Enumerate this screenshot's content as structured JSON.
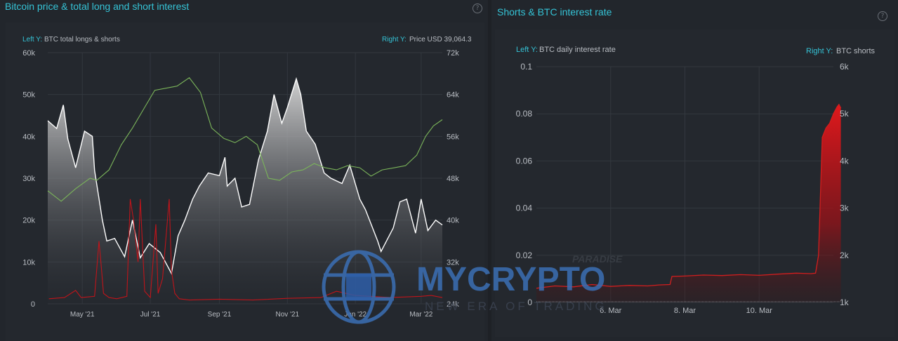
{
  "panels": [
    {
      "title": "Bitcoin price & total long and short interest",
      "help": "?",
      "axis_note_left_prefix": "Left Y:",
      "axis_note_left": "BTC total longs & shorts",
      "axis_note_right_prefix": "Right Y:",
      "axis_note_right": "Price USD 39,064.3"
    },
    {
      "title": "Shorts & BTC interest rate",
      "help": "?",
      "axis_note_left_prefix": "Left Y:",
      "axis_note_left": "BTC daily interest rate",
      "axis_note_right_prefix": "Right Y:",
      "axis_note_right": "BTC shorts"
    }
  ],
  "watermark": {
    "brand": "MYCRYPTO",
    "tag": "PARADISE",
    "slogan": "NEW ERA OF TRADING",
    "color": "#3b6fb5"
  },
  "colors": {
    "accent": "#35c3d6",
    "price": "#ffffff",
    "longs_shorts": "#7bb55a",
    "shorts": "#c0141a",
    "interest": "#d21e1e"
  },
  "chart_data": [
    {
      "type": "line",
      "x_ticks": [
        "May '21",
        "Jul '21",
        "Sep '21",
        "Nov '21",
        "Jan '22",
        "Mar '22"
      ],
      "x_range": [
        "2021-03-31",
        "2022-03-20"
      ],
      "left_axis": {
        "ticks": [
          "0",
          "10k",
          "20k",
          "30k",
          "40k",
          "50k",
          "60k"
        ],
        "ylim": [
          0,
          60000
        ]
      },
      "right_axis": {
        "ticks": [
          "24k",
          "32k",
          "40k",
          "48k",
          "56k",
          "64k",
          "72k"
        ],
        "ylim": [
          24000,
          72000
        ]
      },
      "series": [
        {
          "axis": "right",
          "style": "area",
          "x": [
            "2021-03-31",
            "2021-04-08",
            "2021-04-14",
            "2021-04-18",
            "2021-04-25",
            "2021-05-03",
            "2021-05-10",
            "2021-05-12",
            "2021-05-19",
            "2021-05-23",
            "2021-05-30",
            "2021-06-08",
            "2021-06-15",
            "2021-06-22",
            "2021-06-30",
            "2021-07-10",
            "2021-07-20",
            "2021-07-26",
            "2021-08-01",
            "2021-08-08",
            "2021-08-14",
            "2021-08-22",
            "2021-09-01",
            "2021-09-06",
            "2021-09-08",
            "2021-09-15",
            "2021-09-21",
            "2021-09-28",
            "2021-10-06",
            "2021-10-14",
            "2021-10-20",
            "2021-10-27",
            "2021-11-01",
            "2021-11-09",
            "2021-11-13",
            "2021-11-18",
            "2021-11-26",
            "2021-12-04",
            "2021-12-10",
            "2021-12-20",
            "2021-12-27",
            "2022-01-05",
            "2022-01-10",
            "2022-01-21",
            "2022-01-24",
            "2022-02-04",
            "2022-02-10",
            "2022-02-16",
            "2022-02-24",
            "2022-03-01",
            "2022-03-07",
            "2022-03-14",
            "2022-03-20"
          ],
          "y": [
            59000,
            57500,
            62000,
            55500,
            50000,
            57000,
            56000,
            49500,
            40000,
            36000,
            36500,
            33000,
            40000,
            32800,
            35500,
            33800,
            29800,
            37000,
            40000,
            44000,
            46500,
            49000,
            48500,
            52000,
            46500,
            48000,
            42500,
            43000,
            51500,
            57000,
            64000,
            58500,
            61500,
            67000,
            64000,
            57000,
            54500,
            49000,
            48000,
            47000,
            50500,
            44000,
            42000,
            36000,
            34000,
            38500,
            43500,
            44000,
            37500,
            44000,
            38000,
            40000,
            39064
          ]
        },
        {
          "axis": "left",
          "style": "line",
          "x": [
            "2021-03-31",
            "2021-04-12",
            "2021-04-25",
            "2021-05-08",
            "2021-05-14",
            "2021-05-25",
            "2021-06-05",
            "2021-06-15",
            "2021-06-25",
            "2021-07-05",
            "2021-07-15",
            "2021-07-25",
            "2021-08-05",
            "2021-08-15",
            "2021-08-25",
            "2021-09-05",
            "2021-09-15",
            "2021-09-25",
            "2021-10-05",
            "2021-10-15",
            "2021-10-25",
            "2021-11-05",
            "2021-11-15",
            "2021-11-25",
            "2021-12-05",
            "2021-12-15",
            "2021-12-25",
            "2022-01-05",
            "2022-01-15",
            "2022-01-25",
            "2022-02-05",
            "2022-02-15",
            "2022-02-25",
            "2022-03-05",
            "2022-03-12",
            "2022-03-20"
          ],
          "y": [
            27000,
            24500,
            27500,
            30000,
            29500,
            32000,
            38000,
            42000,
            46500,
            51000,
            51500,
            52000,
            54000,
            50500,
            42000,
            39500,
            38500,
            40000,
            38000,
            30000,
            29500,
            31500,
            32000,
            33500,
            32500,
            32000,
            33000,
            32500,
            30500,
            32000,
            32500,
            33000,
            35500,
            40000,
            42500,
            44000
          ]
        },
        {
          "axis": "left",
          "style": "line",
          "x": [
            "2021-04-01",
            "2021-04-15",
            "2021-04-25",
            "2021-04-30",
            "2021-05-12",
            "2021-05-16",
            "2021-05-18",
            "2021-05-20",
            "2021-05-25",
            "2021-06-01",
            "2021-06-10",
            "2021-06-13",
            "2021-06-16",
            "2021-06-20",
            "2021-06-22",
            "2021-06-26",
            "2021-07-01",
            "2021-07-06",
            "2021-07-08",
            "2021-07-12",
            "2021-07-18",
            "2021-07-20",
            "2021-07-23",
            "2021-07-27",
            "2021-08-05",
            "2021-09-01",
            "2021-10-01",
            "2021-11-01",
            "2021-12-01",
            "2021-12-15",
            "2022-01-01",
            "2022-02-01",
            "2022-03-01",
            "2022-03-10",
            "2022-03-20"
          ],
          "y": [
            1200,
            1500,
            3200,
            1500,
            1800,
            15000,
            9000,
            2500,
            1500,
            1200,
            1800,
            25000,
            20000,
            10000,
            25000,
            3000,
            1500,
            19000,
            2500,
            6000,
            25000,
            8000,
            2500,
            1200,
            900,
            1100,
            900,
            1300,
            1500,
            3000,
            2000,
            1500,
            1800,
            2000,
            1500
          ]
        }
      ]
    },
    {
      "type": "area",
      "x_ticks": [
        "6. Mar",
        "8. Mar",
        "10. Mar"
      ],
      "x_range": [
        0,
        8
      ],
      "left_axis": {
        "ticks": [
          "0",
          "0.02",
          "0.04",
          "0.06",
          "0.08",
          "0.1"
        ],
        "ylim": [
          0,
          0.1
        ]
      },
      "right_axis": {
        "ticks": [
          "1k",
          "2k",
          "3k",
          "4k",
          "5k",
          "6k"
        ],
        "ylim": [
          1000,
          6000
        ]
      },
      "x_labels_positions_data": [
        2,
        4,
        6
      ],
      "series": [
        {
          "axis": "right",
          "style": "area",
          "x": [
            0.0,
            0.5,
            1.0,
            1.5,
            2.0,
            2.5,
            3.0,
            3.3,
            3.6,
            3.65,
            4.0,
            4.5,
            5.0,
            5.5,
            6.0,
            6.5,
            7.0,
            7.4,
            7.52,
            7.6,
            7.7,
            7.8,
            7.9,
            8.0,
            8.1,
            8.15,
            8.2
          ],
          "y": [
            1300,
            1350,
            1330,
            1380,
            1340,
            1360,
            1350,
            1370,
            1380,
            1550,
            1560,
            1580,
            1570,
            1590,
            1575,
            1600,
            1620,
            1610,
            1620,
            2000,
            4500,
            4700,
            4800,
            5000,
            5150,
            5200,
            5120
          ]
        }
      ]
    }
  ]
}
